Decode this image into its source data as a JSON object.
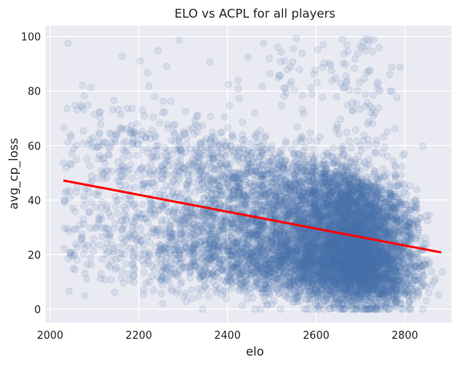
{
  "chart_data": {
    "type": "scatter",
    "title": "ELO vs ACPL for all players",
    "xlabel": "elo",
    "ylabel": "avg_cp_loss",
    "xlim": [
      1990,
      2905
    ],
    "ylim": [
      -5,
      104
    ],
    "xticks": [
      2000,
      2200,
      2400,
      2600,
      2800
    ],
    "yticks": [
      0,
      20,
      40,
      60,
      80,
      100
    ],
    "grid": true,
    "background_color": "#eaeaf2",
    "point_color": "#4c72b0",
    "point_opacity": 0.12,
    "fit_line_color": "#ff0000",
    "series": [
      {
        "type": "scatter",
        "approx_point_count": 9000,
        "x_range": [
          2030,
          2885
        ],
        "y_range": [
          0,
          100
        ],
        "density_peak_x": [
          2500,
          2850
        ],
        "density_peak_y": [
          5,
          60
        ]
      },
      {
        "type": "line",
        "kind": "regression",
        "x": [
          2030,
          2882
        ],
        "y": [
          47.2,
          20.8
        ]
      }
    ]
  }
}
